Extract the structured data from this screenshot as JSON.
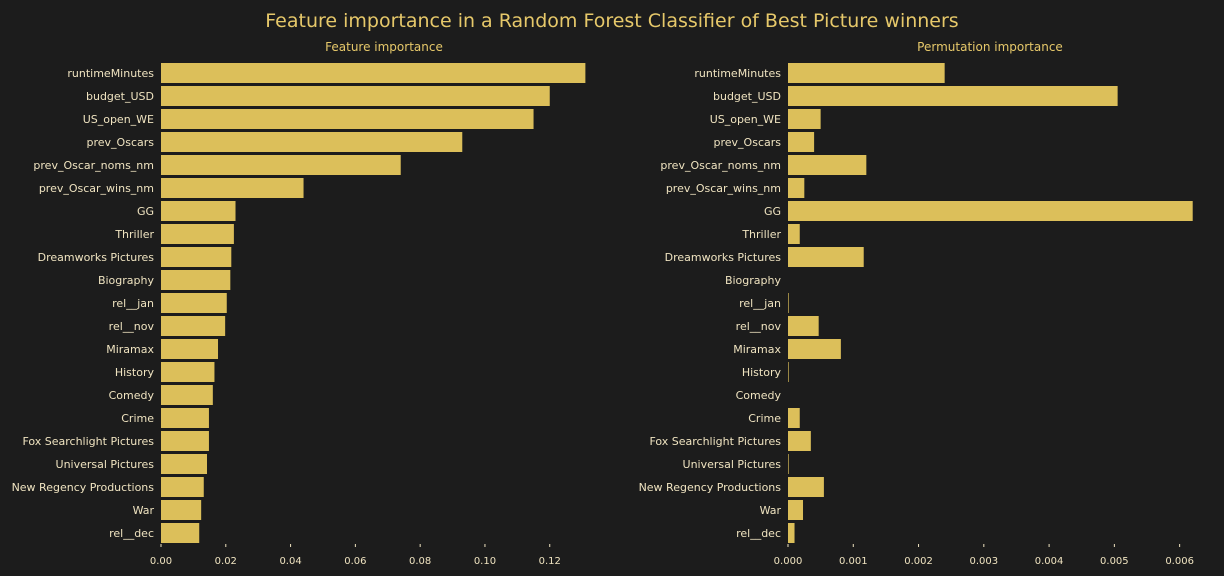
{
  "title": "Feature importance in a Random Forest Classifier of Best Picture winners",
  "colors": {
    "background": "#1c1c1c",
    "bar": "#dcbf5a",
    "title": "#e6c86a",
    "text": "#efe3c0"
  },
  "chart_data": [
    {
      "type": "bar",
      "orientation": "horizontal",
      "title": "Feature importance",
      "categories": [
        "runtimeMinutes",
        "budget_USD",
        "US_open_WE",
        "prev_Oscars",
        "prev_Oscar_noms_nm",
        "prev_Oscar_wins_nm",
        "GG",
        "Thriller",
        "Dreamworks Pictures",
        "Biography",
        "rel__jan",
        "rel__nov",
        "Miramax",
        "History",
        "Comedy",
        "Crime",
        "Fox Searchlight Pictures",
        "Universal Pictures",
        "New Regency Productions",
        "War",
        "rel__dec"
      ],
      "values": [
        0.131,
        0.12,
        0.115,
        0.093,
        0.074,
        0.044,
        0.023,
        0.0225,
        0.0217,
        0.0214,
        0.0203,
        0.0198,
        0.0176,
        0.0165,
        0.016,
        0.0148,
        0.0148,
        0.0142,
        0.0132,
        0.0124,
        0.0118
      ],
      "xlim": [
        0,
        0.1315
      ],
      "xticks": [
        "0.00",
        "0.02",
        "0.04",
        "0.06",
        "0.08",
        "0.10",
        "0.12"
      ],
      "xtick_values": [
        0,
        0.02,
        0.04,
        0.06,
        0.08,
        0.1,
        0.12
      ],
      "grid": false
    },
    {
      "type": "bar",
      "orientation": "horizontal",
      "title": "Permutation importance",
      "categories": [
        "runtimeMinutes",
        "budget_USD",
        "US_open_WE",
        "prev_Oscars",
        "prev_Oscar_noms_nm",
        "prev_Oscar_wins_nm",
        "GG",
        "Thriller",
        "Dreamworks Pictures",
        "Biography",
        "rel__jan",
        "rel__nov",
        "Miramax",
        "History",
        "Comedy",
        "Crime",
        "Fox Searchlight Pictures",
        "Universal Pictures",
        "New Regency Productions",
        "War",
        "rel__dec"
      ],
      "values": [
        0.0024,
        0.00505,
        0.0005,
        0.0004,
        0.0012,
        0.00025,
        0.0062,
        0.00018,
        0.00116,
        0.0,
        1e-05,
        0.00047,
        0.00081,
        1e-05,
        0.0,
        0.00018,
        0.00035,
        1e-05,
        0.00055,
        0.00023,
        0.0001
      ],
      "xlim": [
        0,
        0.00622
      ],
      "xticks": [
        "0.000",
        "0.001",
        "0.002",
        "0.003",
        "0.004",
        "0.005",
        "0.006"
      ],
      "xtick_values": [
        0,
        0.001,
        0.002,
        0.003,
        0.004,
        0.005,
        0.006
      ],
      "grid": false
    }
  ]
}
